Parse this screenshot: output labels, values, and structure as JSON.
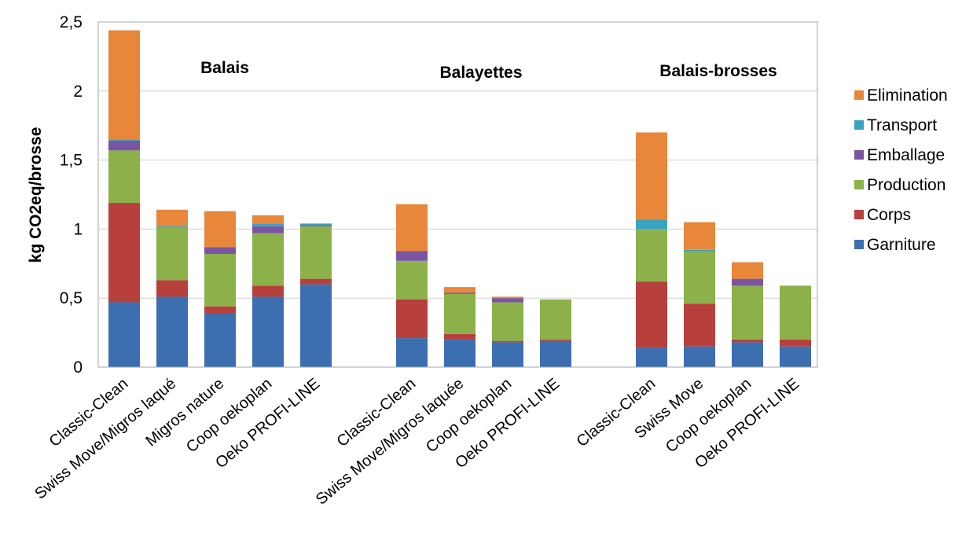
{
  "chart_data": {
    "type": "bar",
    "stacked": true,
    "ylabel": "kg CO2eq/brosse",
    "xlabel": "",
    "ylim": [
      0,
      2.5
    ],
    "yticks": [
      "0",
      "0,5",
      "1",
      "1,5",
      "2",
      "2,5"
    ],
    "ytick_values": [
      0,
      0.5,
      1,
      1.5,
      2,
      2.5
    ],
    "grid": true,
    "legend_position": "right",
    "groups": [
      {
        "name": "Balais",
        "categories": [
          "Classic-Clean",
          "Swiss Move/Migros laqué",
          "Migros nature",
          "Coop oekoplan",
          "Oeko PROFI-LINE"
        ],
        "series": [
          {
            "name": "Garniture",
            "values": [
              0.47,
              0.51,
              0.39,
              0.51,
              0.6
            ]
          },
          {
            "name": "Corps",
            "values": [
              0.72,
              0.12,
              0.05,
              0.08,
              0.04
            ]
          },
          {
            "name": "Production",
            "values": [
              0.38,
              0.38,
              0.38,
              0.38,
              0.38
            ]
          },
          {
            "name": "Emballage",
            "values": [
              0.07,
              0.0,
              0.05,
              0.05,
              0.01
            ]
          },
          {
            "name": "Transport",
            "values": [
              0.01,
              0.01,
              0.0,
              0.02,
              0.01
            ]
          },
          {
            "name": "Elimination",
            "values": [
              0.79,
              0.12,
              0.26,
              0.06,
              0.0
            ]
          }
        ]
      },
      {
        "name": "Balayettes",
        "categories": [
          "Classic-Clean",
          "Swiss Move/Migros laquée",
          "Coop oekoplan",
          "Oeko PROFI-LINE"
        ],
        "series": [
          {
            "name": "Garniture",
            "values": [
              0.21,
              0.2,
              0.18,
              0.19
            ]
          },
          {
            "name": "Corps",
            "values": [
              0.28,
              0.04,
              0.01,
              0.01
            ]
          },
          {
            "name": "Production",
            "values": [
              0.28,
              0.29,
              0.28,
              0.29
            ]
          },
          {
            "name": "Emballage",
            "values": [
              0.07,
              0.01,
              0.03,
              0.0
            ]
          },
          {
            "name": "Transport",
            "values": [
              0.0,
              0.0,
              0.0,
              0.0
            ]
          },
          {
            "name": "Elimination",
            "values": [
              0.34,
              0.04,
              0.01,
              0.0
            ]
          }
        ]
      },
      {
        "name": "Balais-brosses",
        "categories": [
          "Classic-Clean",
          "Swiss Move",
          "Coop oekoplan",
          "Oeko PROFI-LINE"
        ],
        "series": [
          {
            "name": "Garniture",
            "values": [
              0.14,
              0.15,
              0.18,
              0.15
            ]
          },
          {
            "name": "Corps",
            "values": [
              0.48,
              0.31,
              0.02,
              0.05
            ]
          },
          {
            "name": "Production",
            "values": [
              0.38,
              0.38,
              0.39,
              0.39
            ]
          },
          {
            "name": "Emballage",
            "values": [
              0.0,
              0.0,
              0.05,
              0.0
            ]
          },
          {
            "name": "Transport",
            "values": [
              0.07,
              0.01,
              0.0,
              0.0
            ]
          },
          {
            "name": "Elimination",
            "values": [
              0.63,
              0.2,
              0.12,
              0.0
            ]
          }
        ]
      }
    ],
    "legend": [
      {
        "name": "Elimination",
        "color": "#e8873a"
      },
      {
        "name": "Transport",
        "color": "#3aa3c3"
      },
      {
        "name": "Emballage",
        "color": "#7a55a3"
      },
      {
        "name": "Production",
        "color": "#8cb04a"
      },
      {
        "name": "Corps",
        "color": "#b8403c"
      },
      {
        "name": "Garniture",
        "color": "#3c6fb0"
      }
    ]
  }
}
